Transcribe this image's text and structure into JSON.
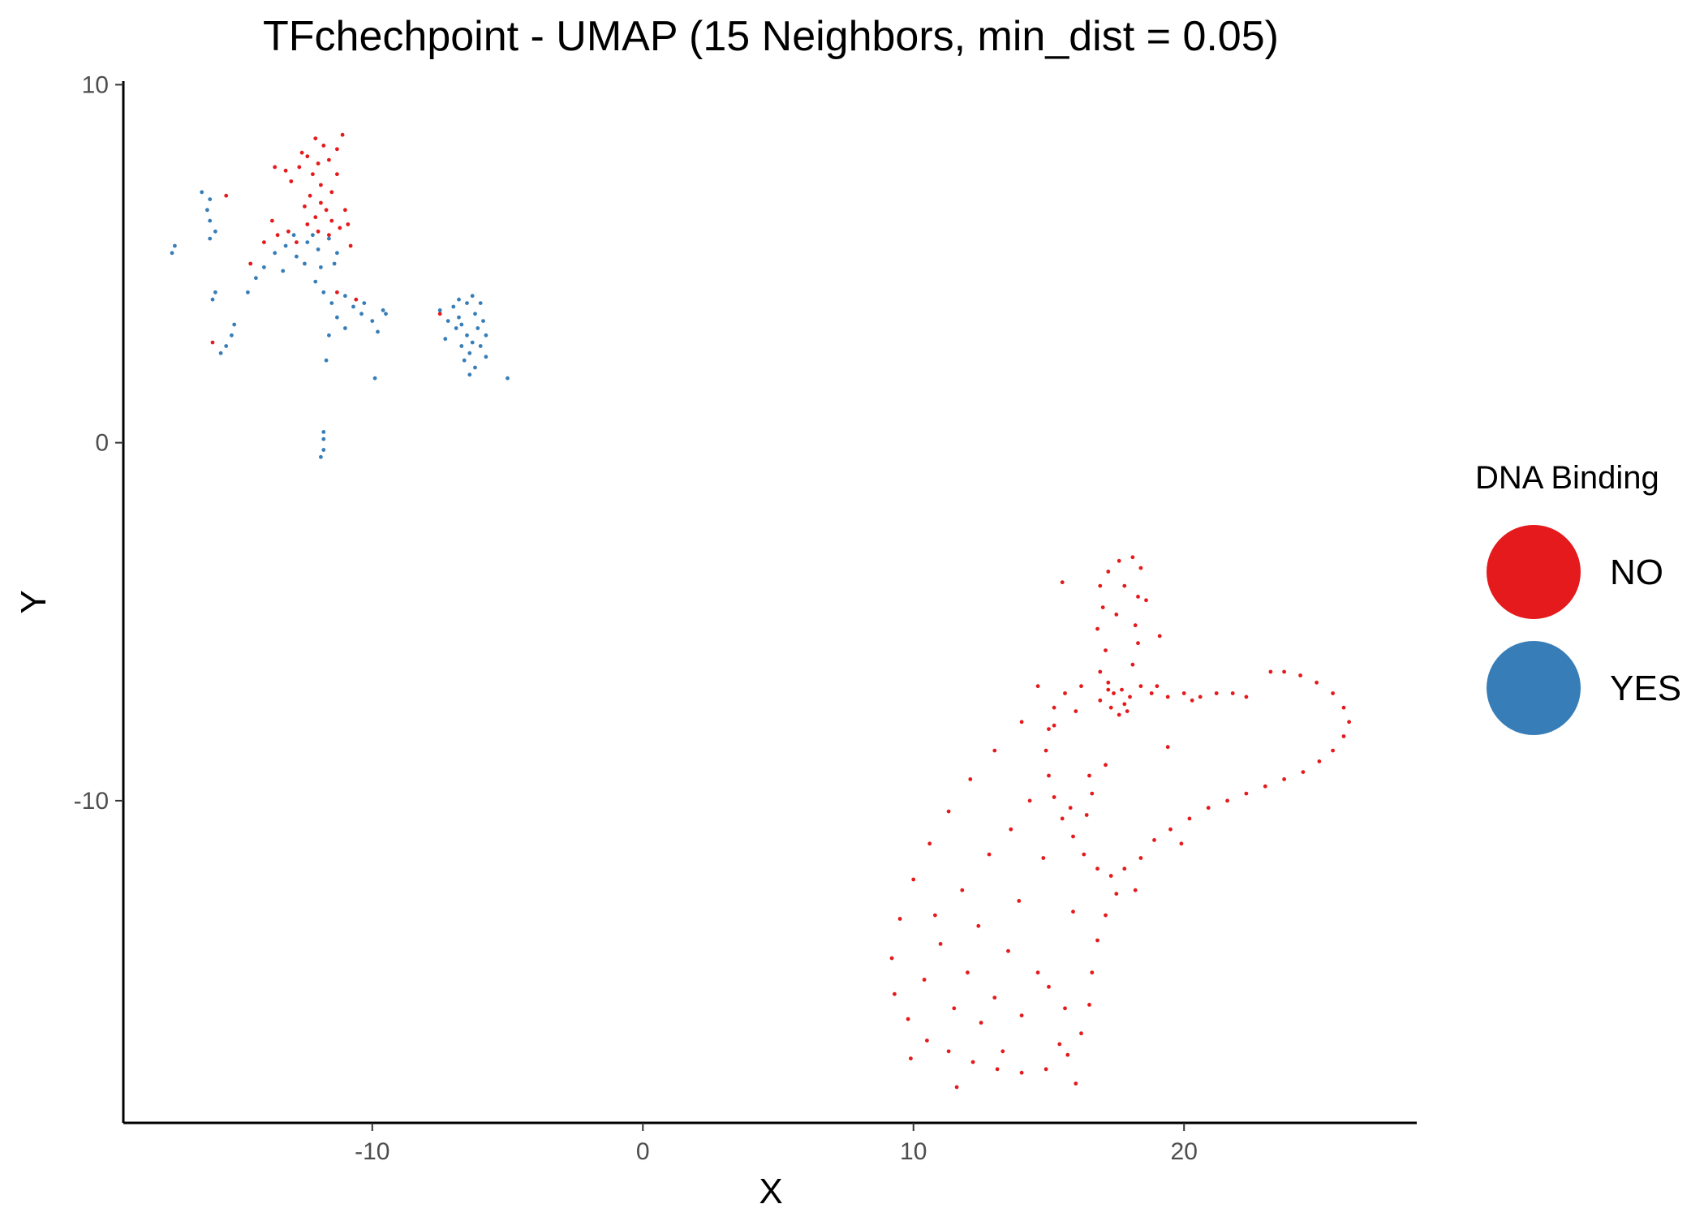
{
  "chart_data": {
    "type": "scatter",
    "title": "TFchechpoint - UMAP (15 Neighbors, min_dist = 0.05)",
    "xlabel": "X",
    "ylabel": "Y",
    "xlim": [
      -19.2,
      28.6
    ],
    "ylim": [
      -19,
      10.1
    ],
    "xticks": [
      -10,
      0,
      10,
      20
    ],
    "xtick_labels": [
      "-10",
      "0",
      "10",
      "20"
    ],
    "yticks": [
      10,
      0,
      -10
    ],
    "ytick_labels": [
      "10",
      "0",
      "-10"
    ],
    "grid": false,
    "legend": {
      "title": "DNA Binding",
      "position": "right",
      "entries": [
        {
          "label": "NO",
          "color": "#e41a1c"
        },
        {
          "label": "YES",
          "color": "#377eb8"
        }
      ]
    },
    "series": [
      {
        "name": "NO",
        "color": "#e41a1c",
        "points": [
          [
            -12.1,
            8.5
          ],
          [
            -11.8,
            8.3
          ],
          [
            -12.4,
            8.0
          ],
          [
            -12.0,
            7.8
          ],
          [
            -11.6,
            7.9
          ],
          [
            -11.3,
            8.2
          ],
          [
            -12.7,
            7.7
          ],
          [
            -13.2,
            7.6
          ],
          [
            -13.6,
            7.7
          ],
          [
            -12.2,
            7.5
          ],
          [
            -11.9,
            7.2
          ],
          [
            -11.5,
            7.0
          ],
          [
            -12.3,
            6.9
          ],
          [
            -11.9,
            6.7
          ],
          [
            -11.7,
            6.5
          ],
          [
            -12.1,
            6.3
          ],
          [
            -11.5,
            6.2
          ],
          [
            -11.2,
            6.0
          ],
          [
            -12.4,
            6.1
          ],
          [
            -12.0,
            5.9
          ],
          [
            -11.6,
            5.8
          ],
          [
            -12.8,
            5.6
          ],
          [
            -13.1,
            5.9
          ],
          [
            -13.5,
            5.8
          ],
          [
            -14.0,
            5.6
          ],
          [
            -13.7,
            6.2
          ],
          [
            -11.0,
            6.5
          ],
          [
            -10.9,
            6.1
          ],
          [
            -12.5,
            6.6
          ],
          [
            -11.3,
            7.5
          ],
          [
            -11.1,
            8.6
          ],
          [
            -12.6,
            8.1
          ],
          [
            -13.0,
            7.3
          ],
          [
            -10.8,
            5.5
          ],
          [
            -11.3,
            4.2
          ],
          [
            -10.6,
            4.0
          ],
          [
            -15.4,
            6.9
          ],
          [
            -15.9,
            2.8
          ],
          [
            -7.5,
            3.6
          ],
          [
            -14.5,
            5.0
          ],
          [
            18.1,
            -3.2
          ],
          [
            17.6,
            -3.3
          ],
          [
            17.2,
            -3.6
          ],
          [
            18.4,
            -3.5
          ],
          [
            16.9,
            -4.0
          ],
          [
            17.8,
            -4.0
          ],
          [
            18.3,
            -4.3
          ],
          [
            17.0,
            -4.6
          ],
          [
            17.5,
            -4.8
          ],
          [
            18.6,
            -4.4
          ],
          [
            16.8,
            -5.2
          ],
          [
            18.2,
            -5.1
          ],
          [
            17.1,
            -5.8
          ],
          [
            18.3,
            -5.6
          ],
          [
            16.9,
            -6.4
          ],
          [
            18.1,
            -6.2
          ],
          [
            17.2,
            -6.9
          ],
          [
            18.4,
            -6.8
          ],
          [
            16.9,
            -7.2
          ],
          [
            18.0,
            -7.1
          ],
          [
            17.4,
            -7.0
          ],
          [
            17.8,
            -7.3
          ],
          [
            17.3,
            -7.4
          ],
          [
            17.6,
            -7.6
          ],
          [
            17.9,
            -7.5
          ],
          [
            17.2,
            -6.7
          ],
          [
            17.7,
            -6.9
          ],
          [
            16.2,
            -6.8
          ],
          [
            15.6,
            -7.0
          ],
          [
            15.2,
            -7.4
          ],
          [
            15.0,
            -8.0
          ],
          [
            14.9,
            -8.6
          ],
          [
            15.0,
            -9.3
          ],
          [
            15.2,
            -9.9
          ],
          [
            15.5,
            -10.5
          ],
          [
            15.9,
            -11.0
          ],
          [
            16.3,
            -11.5
          ],
          [
            16.8,
            -11.9
          ],
          [
            17.3,
            -12.1
          ],
          [
            17.8,
            -11.9
          ],
          [
            18.4,
            -11.6
          ],
          [
            18.9,
            -11.1
          ],
          [
            19.5,
            -10.8
          ],
          [
            20.2,
            -10.5
          ],
          [
            20.9,
            -10.2
          ],
          [
            21.6,
            -10.0
          ],
          [
            22.3,
            -9.8
          ],
          [
            23.0,
            -9.6
          ],
          [
            23.7,
            -9.4
          ],
          [
            24.4,
            -9.2
          ],
          [
            25.0,
            -8.9
          ],
          [
            25.5,
            -8.6
          ],
          [
            25.9,
            -8.2
          ],
          [
            26.1,
            -7.8
          ],
          [
            25.9,
            -7.4
          ],
          [
            25.5,
            -7.0
          ],
          [
            24.9,
            -6.7
          ],
          [
            24.3,
            -6.5
          ],
          [
            23.7,
            -6.4
          ],
          [
            23.2,
            -6.4
          ],
          [
            18.8,
            -7.0
          ],
          [
            19.4,
            -7.1
          ],
          [
            20.0,
            -7.0
          ],
          [
            20.6,
            -7.1
          ],
          [
            21.2,
            -7.0
          ],
          [
            21.8,
            -7.0
          ],
          [
            22.3,
            -7.1
          ],
          [
            19.0,
            -6.8
          ],
          [
            20.3,
            -7.2
          ],
          [
            16.5,
            -9.3
          ],
          [
            16.6,
            -9.8
          ],
          [
            16.4,
            -10.4
          ],
          [
            15.8,
            -10.2
          ],
          [
            14.0,
            -7.8
          ],
          [
            13.0,
            -8.6
          ],
          [
            12.1,
            -9.4
          ],
          [
            11.3,
            -10.3
          ],
          [
            10.6,
            -11.2
          ],
          [
            10.0,
            -12.2
          ],
          [
            9.5,
            -13.3
          ],
          [
            9.2,
            -14.4
          ],
          [
            9.3,
            -15.4
          ],
          [
            9.8,
            -16.1
          ],
          [
            10.5,
            -16.7
          ],
          [
            11.3,
            -17.0
          ],
          [
            12.2,
            -17.3
          ],
          [
            13.1,
            -17.5
          ],
          [
            14.0,
            -17.6
          ],
          [
            14.9,
            -17.5
          ],
          [
            15.7,
            -17.1
          ],
          [
            16.2,
            -16.5
          ],
          [
            16.5,
            -15.7
          ],
          [
            16.6,
            -14.8
          ],
          [
            16.8,
            -13.9
          ],
          [
            17.1,
            -13.2
          ],
          [
            17.5,
            -12.6
          ],
          [
            11.0,
            -14.0
          ],
          [
            12.0,
            -14.8
          ],
          [
            13.0,
            -15.5
          ],
          [
            14.0,
            -16.0
          ],
          [
            15.0,
            -15.2
          ],
          [
            12.5,
            -16.2
          ],
          [
            11.5,
            -15.8
          ],
          [
            10.4,
            -15.0
          ],
          [
            13.5,
            -14.2
          ],
          [
            14.6,
            -14.8
          ],
          [
            15.6,
            -15.8
          ],
          [
            10.8,
            -13.2
          ],
          [
            11.8,
            -12.5
          ],
          [
            12.8,
            -11.5
          ],
          [
            13.6,
            -10.8
          ],
          [
            14.3,
            -10.0
          ],
          [
            14.8,
            -11.6
          ],
          [
            13.9,
            -12.8
          ],
          [
            12.4,
            -13.5
          ],
          [
            15.4,
            -16.8
          ],
          [
            16.0,
            -17.9
          ],
          [
            11.6,
            -18.0
          ],
          [
            9.9,
            -17.2
          ],
          [
            13.3,
            -17.0
          ],
          [
            19.4,
            -8.5
          ],
          [
            19.9,
            -11.2
          ],
          [
            18.2,
            -12.5
          ],
          [
            19.1,
            -5.4
          ],
          [
            14.6,
            -6.8
          ],
          [
            15.5,
            -3.9
          ],
          [
            15.2,
            -7.9
          ],
          [
            16.0,
            -7.5
          ],
          [
            17.1,
            -9.0
          ],
          [
            15.9,
            -13.1
          ]
        ]
      },
      {
        "name": "YES",
        "color": "#377eb8",
        "points": [
          [
            -12.4,
            5.6
          ],
          [
            -12.0,
            5.4
          ],
          [
            -11.6,
            5.7
          ],
          [
            -11.3,
            5.3
          ],
          [
            -12.8,
            5.2
          ],
          [
            -13.2,
            5.5
          ],
          [
            -12.5,
            5.0
          ],
          [
            -11.9,
            4.9
          ],
          [
            -11.4,
            5.0
          ],
          [
            -12.2,
            5.8
          ],
          [
            -12.9,
            5.8
          ],
          [
            -13.6,
            5.3
          ],
          [
            -14.0,
            4.9
          ],
          [
            -14.3,
            4.6
          ],
          [
            -14.6,
            4.2
          ],
          [
            -13.3,
            4.8
          ],
          [
            -12.1,
            4.5
          ],
          [
            -11.8,
            4.2
          ],
          [
            -11.5,
            3.9
          ],
          [
            -11.3,
            3.5
          ],
          [
            -11.0,
            3.2
          ],
          [
            -10.7,
            3.8
          ],
          [
            -10.4,
            3.6
          ],
          [
            -10.0,
            3.4
          ],
          [
            -9.6,
            3.7
          ],
          [
            -9.8,
            3.1
          ],
          [
            -9.5,
            3.6
          ],
          [
            -10.3,
            3.9
          ],
          [
            -11.6,
            3.0
          ],
          [
            -11.7,
            2.3
          ],
          [
            -11.8,
            0.3
          ],
          [
            -11.8,
            -0.2
          ],
          [
            -11.9,
            -0.4
          ],
          [
            -11.8,
            0.1
          ],
          [
            -9.9,
            1.8
          ],
          [
            -15.2,
            3.0
          ],
          [
            -15.4,
            2.7
          ],
          [
            -15.6,
            2.5
          ],
          [
            -15.1,
            3.3
          ],
          [
            -15.8,
            4.2
          ],
          [
            -15.9,
            4.0
          ],
          [
            -16.3,
            7.0
          ],
          [
            -16.0,
            6.8
          ],
          [
            -16.1,
            6.5
          ],
          [
            -16.0,
            6.2
          ],
          [
            -15.8,
            5.9
          ],
          [
            -16.0,
            5.7
          ],
          [
            -17.4,
            5.3
          ],
          [
            -17.3,
            5.5
          ],
          [
            -11.0,
            4.1
          ],
          [
            -7.0,
            3.8
          ],
          [
            -6.8,
            3.5
          ],
          [
            -6.5,
            3.9
          ],
          [
            -6.2,
            3.6
          ],
          [
            -6.9,
            3.2
          ],
          [
            -6.5,
            3.0
          ],
          [
            -6.1,
            3.2
          ],
          [
            -5.8,
            3.0
          ],
          [
            -6.7,
            2.7
          ],
          [
            -6.4,
            2.5
          ],
          [
            -6.0,
            2.7
          ],
          [
            -5.9,
            3.4
          ],
          [
            -6.3,
            4.1
          ],
          [
            -6.8,
            4.0
          ],
          [
            -7.2,
            3.4
          ],
          [
            -7.3,
            2.9
          ],
          [
            -6.6,
            2.3
          ],
          [
            -6.2,
            2.1
          ],
          [
            -6.4,
            1.9
          ],
          [
            -5.0,
            1.8
          ],
          [
            -7.5,
            3.7
          ],
          [
            -6.0,
            3.9
          ],
          [
            -6.7,
            3.3
          ],
          [
            -6.3,
            2.8
          ],
          [
            -5.8,
            2.4
          ]
        ]
      }
    ]
  }
}
